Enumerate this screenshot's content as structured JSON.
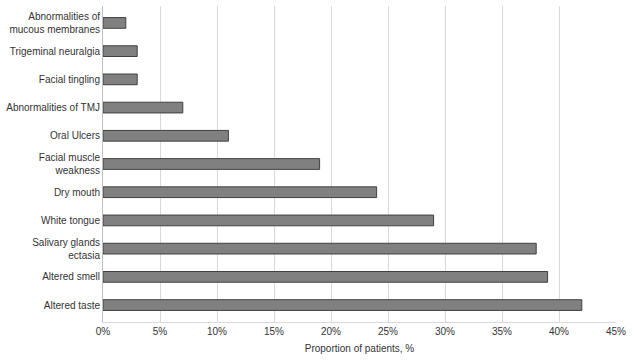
{
  "chart_data": {
    "type": "bar",
    "orientation": "horizontal",
    "x_label": "Proportion of patients, %",
    "categories": [
      "Altered taste",
      "Altered smell",
      "Salivary glands ectasia",
      "White tongue",
      "Dry mouth",
      "Facial muscle weakness",
      "Oral Ulcers",
      "Abnormalities of TMJ",
      "Facial tingling",
      "Trigeminal neuralgia",
      "Abnormalities of mucous membranes"
    ],
    "values": [
      42,
      39,
      38,
      29,
      24,
      19,
      11,
      7,
      3,
      3,
      2
    ],
    "color": "#808080",
    "xlim": [
      0,
      45
    ],
    "xticks": [
      {
        "value": 0,
        "label": "0%"
      },
      {
        "value": 5,
        "label": "5%"
      },
      {
        "value": 10,
        "label": "10%"
      },
      {
        "value": 15,
        "label": "15%"
      },
      {
        "value": 20,
        "label": "20%"
      },
      {
        "value": 25,
        "label": "25%"
      },
      {
        "value": 30,
        "label": "30%"
      },
      {
        "value": 35,
        "label": "35%"
      },
      {
        "value": 40,
        "label": "40%"
      },
      {
        "value": 45,
        "label": "45%"
      }
    ],
    "grid": true
  }
}
